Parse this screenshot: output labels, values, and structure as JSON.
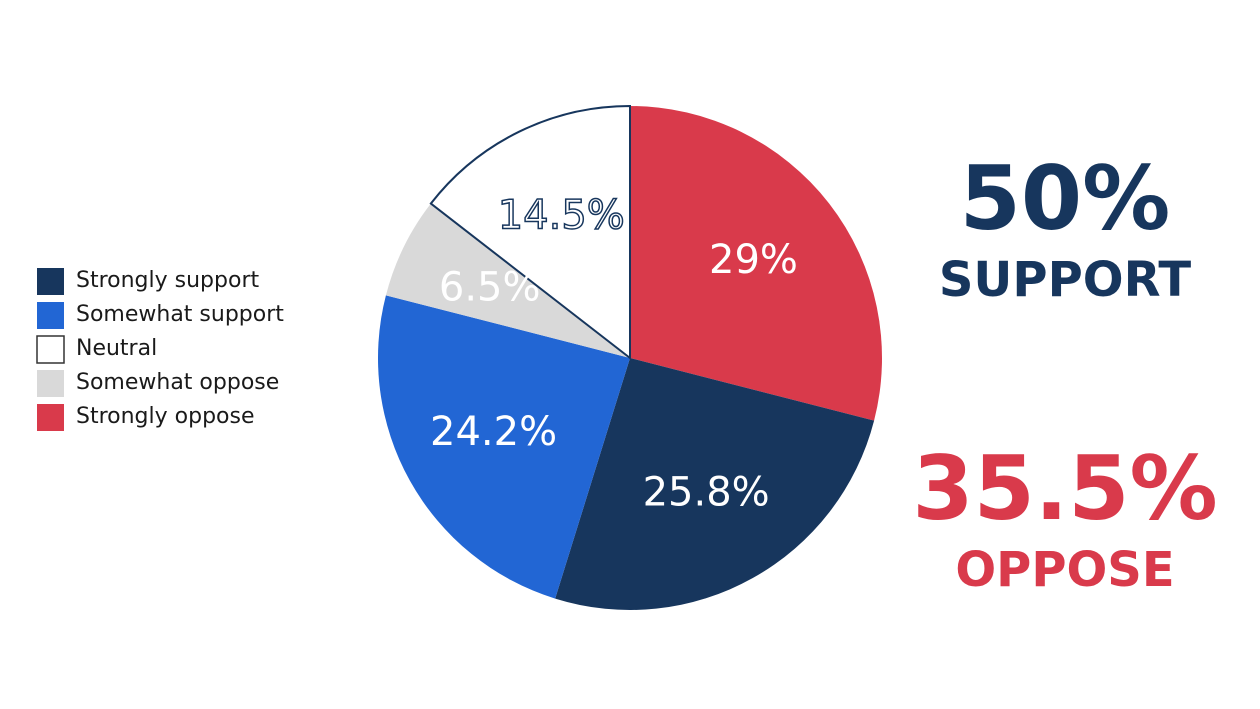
{
  "chart_data": {
    "type": "pie",
    "categories": [
      "Strongly support",
      "Somewhat support",
      "Neutral",
      "Somewhat oppose",
      "Strongly oppose"
    ],
    "values": [
      25.8,
      24.2,
      14.5,
      6.5,
      29
    ],
    "value_labels": [
      "25.8%",
      "24.2%",
      "14.5%",
      "6.5%",
      "29%"
    ],
    "colors": [
      "#17365d",
      "#2266d4",
      "#ffffff",
      "#d9d9d9",
      "#d93a4b"
    ],
    "legend": "left",
    "annotations": [
      {
        "text": "50%",
        "caption": "SUPPORT",
        "color": "#17365d"
      },
      {
        "text": "35.5%",
        "caption": "OPPOSE",
        "color": "#d93a4b"
      }
    ]
  }
}
